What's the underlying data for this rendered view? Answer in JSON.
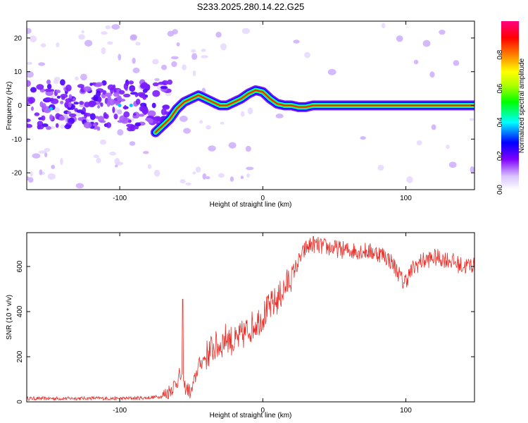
{
  "title": "S233.2025.280.14.22.G25",
  "chart_data": [
    {
      "type": "heatmap",
      "name": "spectrogram",
      "xlabel": "Height of straight line (km)",
      "ylabel": "Frequency (Hz)",
      "xlim": [
        -165,
        148
      ],
      "ylim": [
        -25,
        25
      ],
      "xticks": [
        -100,
        0,
        100
      ],
      "yticks": [
        -20,
        -10,
        0,
        10,
        20
      ],
      "ridge_x": [
        -75,
        -70,
        -65,
        -60,
        -55,
        -50,
        -45,
        -40,
        -35,
        -30,
        -25,
        -20,
        -15,
        -10,
        -5,
        0,
        5,
        10,
        15,
        20,
        25,
        30,
        35,
        40,
        60,
        80,
        100,
        120,
        148
      ],
      "ridge_y": [
        -8,
        -6,
        -4,
        -1,
        1,
        2,
        3,
        2,
        1,
        0,
        0,
        1,
        2,
        3.5,
        4.5,
        4,
        2,
        0.5,
        0,
        0,
        -0.5,
        -0.5,
        0,
        0,
        0,
        0,
        0,
        0,
        0
      ],
      "colorbar": {
        "label": "Normalized spectral amplitude",
        "ticks": [
          "0.0",
          "0.2",
          "0.4",
          "0.6",
          "0.8"
        ],
        "range": [
          0,
          1
        ],
        "colors": [
          "#ffffff",
          "#9b59ff",
          "#4a00ff",
          "#0000ff",
          "#00ffff",
          "#00ff00",
          "#ffff00",
          "#ff8000",
          "#ff0000",
          "#ff0080"
        ]
      }
    },
    {
      "type": "line",
      "name": "snr",
      "xlabel": "Height of straight line (km)",
      "ylabel": "SNR (10 * v/v)",
      "xlim": [
        -165,
        148
      ],
      "ylim": [
        0,
        750
      ],
      "xticks": [
        -100,
        0,
        100
      ],
      "yticks": [
        0,
        200,
        400,
        600
      ],
      "color": "#e8302a",
      "x": [
        -165,
        -140,
        -120,
        -100,
        -80,
        -70,
        -65,
        -60,
        -58,
        -55,
        -50,
        -45,
        -40,
        -35,
        -30,
        -25,
        -20,
        -15,
        -10,
        -5,
        0,
        5,
        10,
        15,
        20,
        25,
        30,
        35,
        40,
        50,
        60,
        70,
        80,
        85,
        90,
        95,
        98,
        100,
        105,
        110,
        120,
        130,
        140,
        148
      ],
      "y": [
        15,
        15,
        16,
        15,
        18,
        25,
        50,
        90,
        120,
        70,
        40,
        160,
        200,
        240,
        250,
        290,
        260,
        290,
        320,
        350,
        380,
        420,
        450,
        500,
        560,
        620,
        680,
        700,
        690,
        680,
        670,
        670,
        660,
        650,
        620,
        570,
        530,
        540,
        590,
        620,
        640,
        630,
        600,
        610
      ],
      "spike": {
        "x": -56,
        "y": 455
      }
    }
  ]
}
